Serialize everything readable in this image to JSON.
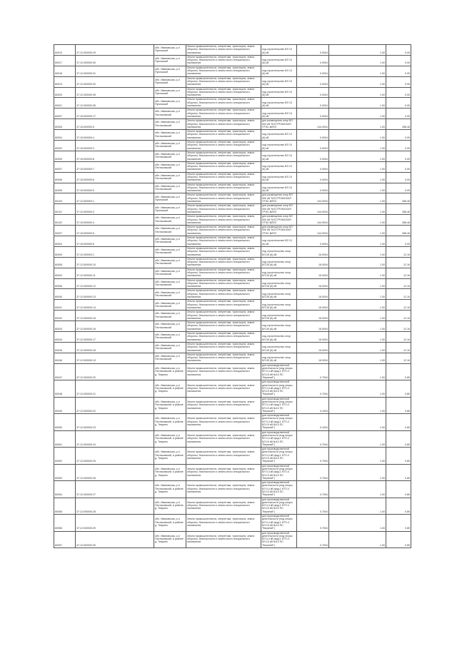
{
  "table": {
    "rows": [
      {
        "id": "60010",
        "cad": "37:12:000000:29",
        "addr": "обл. Ивановская, р-н Пучежский",
        "cat": "Земли промышленности, энергетики, транспорта, земли обороны, безопасности и земли иного специального назначения",
        "use": "под строительство ВЛ 10 (6) кВ",
        "area": "0.0004",
        "v1": "1.00",
        "v2": "0.05"
      },
      {
        "id": "60017",
        "cad": "37:12:000000:30",
        "addr": "обл. Ивановская, р-н Пучежский",
        "cat": "Земли промышленности, энергетики, транспорта, земли обороны, безопасности и земли иного специального назначения",
        "use": "под строительство ВЛ 10 (6) кВ",
        "area": "0.0004",
        "v1": "1.00",
        "v2": "0.05"
      },
      {
        "id": "60018",
        "cad": "37:12:000000:31",
        "addr": "обл. Ивановская, р-н Пучежский",
        "cat": "Земли промышленности, энергетики, транспорта, земли обороны, безопасности и земли иного специального назначения",
        "use": "под строительство ВЛ 10 (6) кВ",
        "area": "0.0004",
        "v1": "1.00",
        "v2": "0.05"
      },
      {
        "id": "60019",
        "cad": "37:12:000000:32",
        "addr": "обл. Ивановская, р-н Пучежский",
        "cat": "Земли промышленности, энергетики, транспорта, земли обороны, безопасности и земли иного специального назначения",
        "use": "под строительство ВЛ 10 (6) кВ",
        "area": "0.0004",
        "v1": "1.00",
        "v2": "0.05"
      },
      {
        "id": "60020",
        "cad": "37:12:000000:35",
        "addr": "обл. Ивановская, р-н Пучежский",
        "cat": "Земли промышленности, энергетики, транспорта, земли обороны, безопасности и земли иного специального назначения",
        "use": "под строительство ВЛ 10 (6) кВ",
        "area": "0.0004",
        "v1": "1.00",
        "v2": "0.05"
      },
      {
        "id": "60021",
        "cad": "37:12:000000:36",
        "addr": "обл. Ивановская, р-н Пучежский",
        "cat": "Земли промышленности, энергетики, транспорта, земли обороны, безопасности и земли иного специального назначения",
        "use": "под строительство ВЛ 10 (6) кВ",
        "area": "0.0004",
        "v1": "1.00",
        "v2": "0.05"
      },
      {
        "id": "60007",
        "cad": "37:15:000000:17",
        "addr": "обл. Ивановская, р-н Пестяковский",
        "cat": "Земли промышленности, энергетики, транспорта, земли обороны, безопасности и земли иного специального назначения",
        "use": "под строительство ВЛ 10 (6) кВ",
        "area": "0.0004",
        "v1": "1.00",
        "v2": "0.05"
      },
      {
        "id": "60005",
        "cad": "37:15:000000:5",
        "addr": "обл. Ивановская, р-н Пестяковский",
        "cat": "Земли промышленности, энергетики, транспорта, земли обороны, безопасности и земли иного специального назначения",
        "use": "для размещения опор ВЛ 500 кВ \"КОСТРОМСКАЯ ГРЭС-ВЛГА\"",
        "area": "144.0004",
        "v1": "1.00",
        "v2": "288.48"
      },
      {
        "id": "60004",
        "cad": "37:15:000000:4",
        "addr": "обл. Ивановская, р-н Пестяковский",
        "cat": "Земли промышленности, энергетики, транспорта, земли обороны, безопасности и земли иного специального назначения",
        "use": "под строительство ВЛ 10 (6) кВ",
        "area": "0.0004",
        "v1": "1.00",
        "v2": "0.05"
      },
      {
        "id": "60003",
        "cad": "37:15:000000:3",
        "addr": "обл. Ивановская, р-н Пестяковский",
        "cat": "Земли промышленности, энергетики, транспорта, земли обороны, безопасности и земли иного специального назначения",
        "use": "под строительство ВЛ 10 (6) кВ",
        "area": "0.0004",
        "v1": "1.00",
        "v2": "0.05"
      },
      {
        "id": "60009",
        "cad": "37:15:000000:8",
        "addr": "обл. Ивановская, р-н Пестяковский",
        "cat": "Земли промышленности, энергетики, транспорта, земли обороны, безопасности и земли иного специального назначения",
        "use": "под строительство ВЛ 10 (6) кВ",
        "area": "0.0004",
        "v1": "1.00",
        "v2": "0.05"
      },
      {
        "id": "60007",
        "cad": "37:15:000000:7",
        "addr": "обл. Ивановская, р-н Пестяковский",
        "cat": "Земли промышленности, энергетики, транспорта, земли обороны, безопасности и земли иного специального назначения",
        "use": "под строительство ВЛ 10 (6) кВ",
        "area": "0.0004",
        "v1": "1.00",
        "v2": "0.05"
      },
      {
        "id": "60006",
        "cad": "37:15:000000:6",
        "addr": "обл. Ивановская, р-н Пестяковский",
        "cat": "Земли промышленности, энергетики, транспорта, земли обороны, безопасности и земли иного специального назначения",
        "use": "под строительство ВЛ 10 (6) кВ",
        "area": "0.0004",
        "v1": "1.00",
        "v2": "0.05"
      },
      {
        "id": "60005",
        "cad": "37:15:000000:9",
        "addr": "обл. Ивановская, р-н Пестяковский",
        "cat": "Земли промышленности, энергетики, транспорта, земли обороны, безопасности и земли иного специального назначения",
        "use": "под строительство ВЛ 10 (6) кВ",
        "area": "0.0004",
        "v1": "1.00",
        "v2": "0.05"
      },
      {
        "id": "60100",
        "cad": "37:12:000000:1",
        "addr": "обл. Ивановская, р-н Пучежский",
        "cat": "Земли промышленности, энергетики, транспорта, земли обороны, безопасности и земли иного специального назначения",
        "use": "для размещения опор ВЛ 500 кВ \"КОСТРОМСКАЯ ГРЭС-ВЛГА\"",
        "area": "144.0004",
        "v1": "1.00",
        "v2": "288.48"
      },
      {
        "id": "60101",
        "cad": "37:12:000000:3",
        "addr": "обл. Ивановская, р-н Пучежский",
        "cat": "Земли промышленности, энергетики, транспорта, земли обороны, безопасности и земли иного специального назначения",
        "use": "для размещения опор ВЛ 500 кВ \"КОСТРОМСКАЯ ГРЭС-ВЛГА\"",
        "area": "144.0004",
        "v1": "1.00",
        "v2": "288.48"
      },
      {
        "id": "60102",
        "cad": "37:15:000000:4",
        "addr": "обл. Ивановская, р-н Пестяковский",
        "cat": "Земли промышленности, энергетики, транспорта, земли обороны, безопасности и земли иного специального назначения",
        "use": "для размещения опор ВЛ 500 кВ \"КОСТРОМСКАЯ ГРЭС-ВЛГА\"",
        "area": "144.0004",
        "v1": "1.00",
        "v2": "288.48"
      },
      {
        "id": "60007",
        "cad": "37:15:000000:5",
        "addr": "обл. Ивановская, р-н Пестяковский",
        "cat": "Земли промышленности, энергетики, транспорта, земли обороны, безопасности и земли иного специального назначения",
        "use": "для размещения опор ВЛ 500 кВ \"КОСТРОМСКАЯ ГРЭС-ВЛГА\"",
        "area": "144.0004",
        "v1": "1.00",
        "v2": "288.48"
      },
      {
        "id": "60004",
        "cad": "37:15:000000:6",
        "addr": "обл. Ивановская, р-н Пестяковский",
        "cat": "Земли промышленности, энергетики, транспорта, земли обороны, безопасности и земли иного специального назначения",
        "use": "под строительство ВЛ 10 (6) кВ",
        "area": "0.0004",
        "v1": "1.00",
        "v2": "0.05"
      },
      {
        "id": "60009",
        "cad": "37:12:000000:1",
        "addr": "обл. Ивановская, р-н Пестяковский",
        "cat": "Земли промышленности, энергетики, транспорта, земли обороны, безопасности и земли иного специального назначения",
        "use": "под строительство опор ВЛ-35 (6) кВ",
        "area": "16.0004",
        "v1": "1.00",
        "v2": "12.16"
      },
      {
        "id": "60008",
        "cad": "37:12:000000:10",
        "addr": "обл. Ивановская, р-н Пестяковский",
        "cat": "Земли промышленности, энергетики, транспорта, земли обороны, безопасности и земли иного специального назначения",
        "use": "под строительство опор ВЛ-35 (6) кВ",
        "area": "16.0004",
        "v1": "1.00",
        "v2": "12.16"
      },
      {
        "id": "60003",
        "cad": "37:12:000000:11",
        "addr": "обл. Ивановская, р-н Пестяковский",
        "cat": "Земли промышленности, энергетики, транспорта, земли обороны, безопасности и земли иного специального назначения",
        "use": "под строительство опор ВЛ-35 (6) кВ",
        "area": "16.0004",
        "v1": "1.00",
        "v2": "12.16"
      },
      {
        "id": "60006",
        "cad": "37:12:000000:12",
        "addr": "обл. Ивановская, р-н Пестяковский",
        "cat": "Земли промышленности, энергетики, транспорта, земли обороны, безопасности и земли иного специального назначения",
        "use": "под строительство опор ВЛ-35 (6) кВ",
        "area": "16.0004",
        "v1": "1.00",
        "v2": "12.16"
      },
      {
        "id": "60040",
        "cad": "37:12:000000:13",
        "addr": "обл. Ивановская, р-н Пестяковский",
        "cat": "Земли промышленности, энергетики, транспорта, земли обороны, безопасности и земли иного специального назначения",
        "use": "под строительство опор ВЛ-35 (6) кВ",
        "area": "16.0004",
        "v1": "1.00",
        "v2": "12.16"
      },
      {
        "id": "60041",
        "cad": "37:12:000000:14",
        "addr": "обл. Ивановская, р-н Пестяковский",
        "cat": "Земли промышленности, энергетики, транспорта, земли обороны, безопасности и земли иного специального назначения",
        "use": "под строительство опор ВЛ-35 (6) кВ",
        "area": "16.0004",
        "v1": "1.00",
        "v2": "12.16"
      },
      {
        "id": "60042",
        "cad": "37:12:000000:15",
        "addr": "обл. Ивановская, р-н Пестяковский",
        "cat": "Земли промышленности, энергетики, транспорта, земли обороны, безопасности и земли иного специального назначения",
        "use": "под строительство опор ВЛ-35 (6) кВ",
        "area": "16.0004",
        "v1": "1.00",
        "v2": "12.16"
      },
      {
        "id": "60043",
        "cad": "37:12:000000:16",
        "addr": "обл. Ивановская, р-н Пестяковский",
        "cat": "Земли промышленности, энергетики, транспорта, земли обороны, безопасности и земли иного специального назначения",
        "use": "под строительство опор ВЛ-35 (6) кВ",
        "area": "16.0004",
        "v1": "1.00",
        "v2": "12.16"
      },
      {
        "id": "60044",
        "cad": "37:12:000000:17",
        "addr": "обл. Ивановская, р-н Пестяковский",
        "cat": "Земли промышленности, энергетики, транспорта, земли обороны, безопасности и земли иного специального назначения",
        "use": "под строительство опор ВЛ-35 (6) кВ",
        "area": "16.0004",
        "v1": "1.00",
        "v2": "12.16"
      },
      {
        "id": "60045",
        "cad": "37:12:000000:18",
        "addr": "обл. Ивановская, р-н Пестяковский",
        "cat": "Земли промышленности, энергетики, транспорта, земли обороны, безопасности и земли иного специального назначения",
        "use": "под строительство опор ВЛ-35 (6) кВ",
        "area": "16.0004",
        "v1": "1.00",
        "v2": "12.16"
      },
      {
        "id": "60046",
        "cad": "37:12:000000:19",
        "addr": "обл. Ивановская, р-н Пестяковский",
        "cat": "Земли промышленности, энергетики, транспорта, земли обороны, безопасности и земли иного специального назначения",
        "use": "под строительство опор ВЛ-35 (6) кВ",
        "area": "16.0004",
        "v1": "1.00",
        "v2": "12.16"
      },
      {
        "id": "60047",
        "cad": "37:12:000000:20",
        "addr": "обл. Ивановская, р-н Пестяковский, в районе д. Теврино",
        "cat": "Земли промышленности, энергетики, транспорта, земли обороны, безопасности и земли иного специального назначения",
        "use": "для производственной деятельности (под опоры ВЛ 0,4 кВ фид.1 КТП-4 ВЛ-10 кВ №10 ПС \"Верхний\")",
        "area": "0.7004",
        "v1": "1.00",
        "v2": "0.85"
      },
      {
        "id": "60048",
        "cad": "37:12:000000:21",
        "addr": "обл. Ивановская, р-н Пестяковский, в районе д. Теврино",
        "cat": "Земли промышленности, энергетики, транспорта, земли обороны, безопасности и земли иного специального назначения",
        "use": "для производственной деятельности (под опоры ВЛ 0,4 кВ фид.1 КТП-4 ВЛ-10 кВ №10 ПС \"Верхний\")",
        "area": "0.7004",
        "v1": "1.00",
        "v2": "0.85"
      },
      {
        "id": "60049",
        "cad": "37:12:000000:22",
        "addr": "обл. Ивановская, р-н Пестяковский, в районе д. Теврино",
        "cat": "Земли промышленности, энергетики, транспорта, земли обороны, безопасности и земли иного специального назначения",
        "use": "для производственной деятельности (под опоры ВЛ 0,4 кВ фид.1 КТП-4 ВЛ-10 кВ №10 ПС \"Верхний\")",
        "area": "0.1004",
        "v1": "1.00",
        "v2": "0.85"
      },
      {
        "id": "60050",
        "cad": "37:12:000000:23",
        "addr": "обл. Ивановская, р-н Пестяковский, в районе д. Теврино",
        "cat": "Земли промышленности, энергетики, транспорта, земли обороны, безопасности и земли иного специального назначения",
        "use": "для производственной деятельности (под опоры ВЛ 0,4 кВ фид.1 КТП-4 ВЛ-10 кВ №10 ПС \"Верхний\")",
        "area": "0.1004",
        "v1": "1.00",
        "v2": "0.85"
      },
      {
        "id": "60051",
        "cad": "37:12:000000:24",
        "addr": "обл. Ивановская, р-н Пестяковский, в районе д. Теврино",
        "cat": "Земли промышленности, энергетики, транспорта, земли обороны, безопасности и земли иного специального назначения",
        "use": "для производственной деятельности (под опоры ВЛ 0,4 кВ фид.1 КТП-4 ВЛ-10 кВ №10 ПС \"Верхний\")",
        "area": "0.7004",
        "v1": "1.00",
        "v2": "0.85"
      },
      {
        "id": "60052",
        "cad": "37:12:000000:25",
        "addr": "обл. Ивановская, р-н Пестяковский, в районе д. Теврино",
        "cat": "Земли промышленности, энергетики, транспорта, земли обороны, безопасности и земли иного специального назначения",
        "use": "для производственной деятельности (под опоры ВЛ 0,4 кВ фид.1 КТП-4 ВЛ-10 кВ №10 ПС \"Верхний\")",
        "area": "0.7004",
        "v1": "1.00",
        "v2": "0.85"
      },
      {
        "id": "60053",
        "cad": "37:12:000000:26",
        "addr": "обл. Ивановская, р-н Пестяковский, в районе д. Теврино",
        "cat": "Земли промышленности, энергетики, транспорта, земли обороны, безопасности и земли иного специального назначения",
        "use": "для производственной деятельности (под опоры ВЛ 0,4 кВ фид.1 КТП-4 ВЛ-10 кВ №10 ПС \"Верхний\")",
        "area": "0.7004",
        "v1": "1.00",
        "v2": "0.85"
      },
      {
        "id": "60054",
        "cad": "37:12:000000:27",
        "addr": "обл. Ивановская, р-н Пестяковский, в районе д. Теврино",
        "cat": "Земли промышленности, энергетики, транспорта, земли обороны, безопасности и земли иного специального назначения",
        "use": "для производственной деятельности (под опоры ВЛ 0,4 кВ фид.1 КТП-4 ВЛ-10 кВ №10 ПС \"Верхний\")",
        "area": "0.7004",
        "v1": "1.00",
        "v2": "0.85"
      },
      {
        "id": "60055",
        "cad": "37:12:000000:28",
        "addr": "обл. Ивановская, р-н Пестяковский, в районе д. Теврино",
        "cat": "Земли промышленности, энергетики, транспорта, земли обороны, безопасности и земли иного специального назначения",
        "use": "для производственной деятельности (под опоры ВЛ 0,4 кВ фид.1 КТП-4 ВЛ-10 кВ №10 ПС \"Верхний\")",
        "area": "0.7004",
        "v1": "1.00",
        "v2": "0.85"
      },
      {
        "id": "60056",
        "cad": "37:12:000000:29",
        "addr": "обл. Ивановская, р-н Пестяковский, в районе д. Теврино",
        "cat": "Земли промышленности, энергетики, транспорта, земли обороны, безопасности и земли иного специального назначения",
        "use": "для производственной деятельности (под опоры ВЛ 0,4 кВ фид.1 КТП-4 ВЛ-10 кВ №10 ПС \"Верхний\")",
        "area": "0.7004",
        "v1": "1.00",
        "v2": "0.85"
      },
      {
        "id": "60057",
        "cad": "37:12:000000:30",
        "addr": "обл. Ивановская, р-н Пестяковский, в районе д. Теврино",
        "cat": "Земли промышленности, энергетики, транспорта, земли обороны, безопасности и земли иного специального назначения",
        "use": "для производственной деятельности (под опоры ВЛ 0,4 кВ фид.1 КТП-4 ВЛ-10 кВ №10 ПС \"Верхний\")",
        "area": "0.7004",
        "v1": "1.00",
        "v2": "0.85"
      }
    ]
  }
}
